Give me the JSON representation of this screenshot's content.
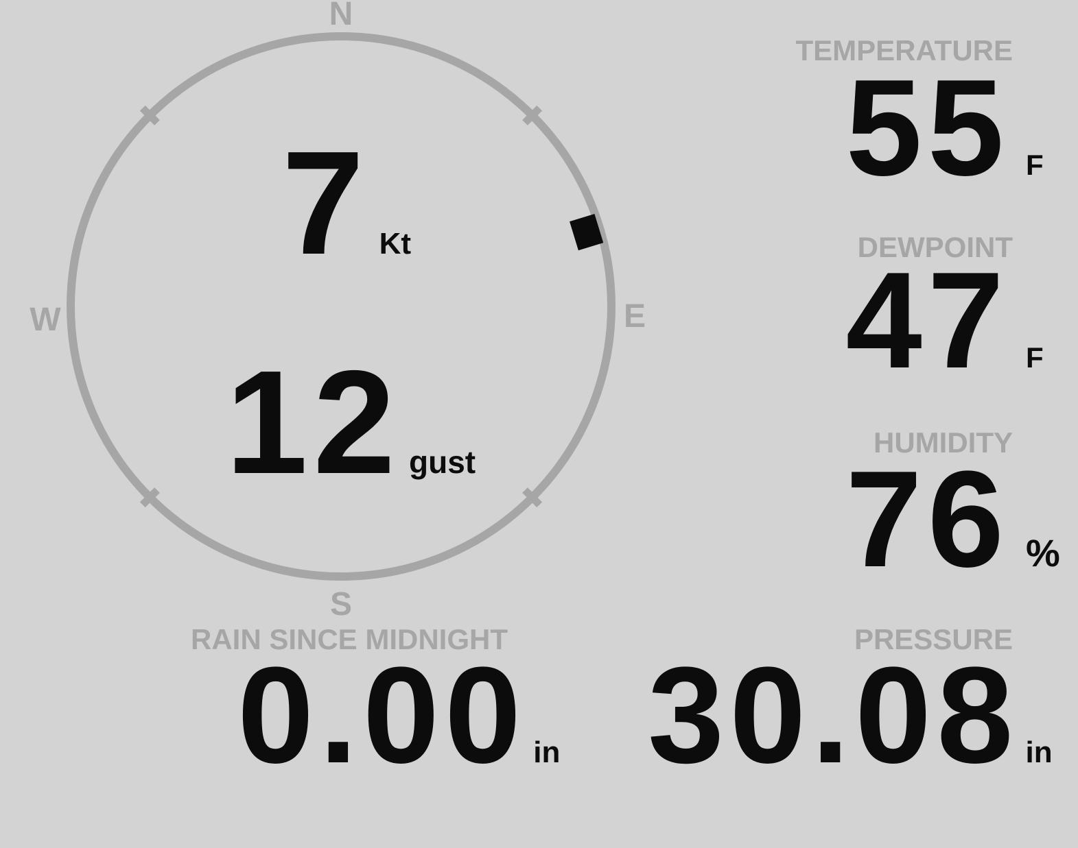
{
  "theme": {
    "background": "#d3d3d3",
    "muted_gray": "#a6a6a6",
    "text_black": "#0c0c0c"
  },
  "compass": {
    "cardinals": {
      "north": "N",
      "east": "E",
      "south": "S",
      "west": "W"
    },
    "wind_speed": {
      "value": "7",
      "unit": "Kt"
    },
    "wind_gust": {
      "value": "12",
      "unit": "gust"
    },
    "direction_deg": 73
  },
  "metrics": {
    "temperature": {
      "label": "TEMPERATURE",
      "value": "55",
      "unit": "F"
    },
    "dewpoint": {
      "label": "DEWPOINT",
      "value": "47",
      "unit": "F"
    },
    "humidity": {
      "label": "HUMIDITY",
      "value": "76",
      "unit": "%"
    },
    "rain": {
      "label": "RAIN SINCE MIDNIGHT",
      "value": "0.00",
      "unit": "in"
    },
    "pressure": {
      "label": "PRESSURE",
      "value": "30.08",
      "unit": "in"
    }
  }
}
